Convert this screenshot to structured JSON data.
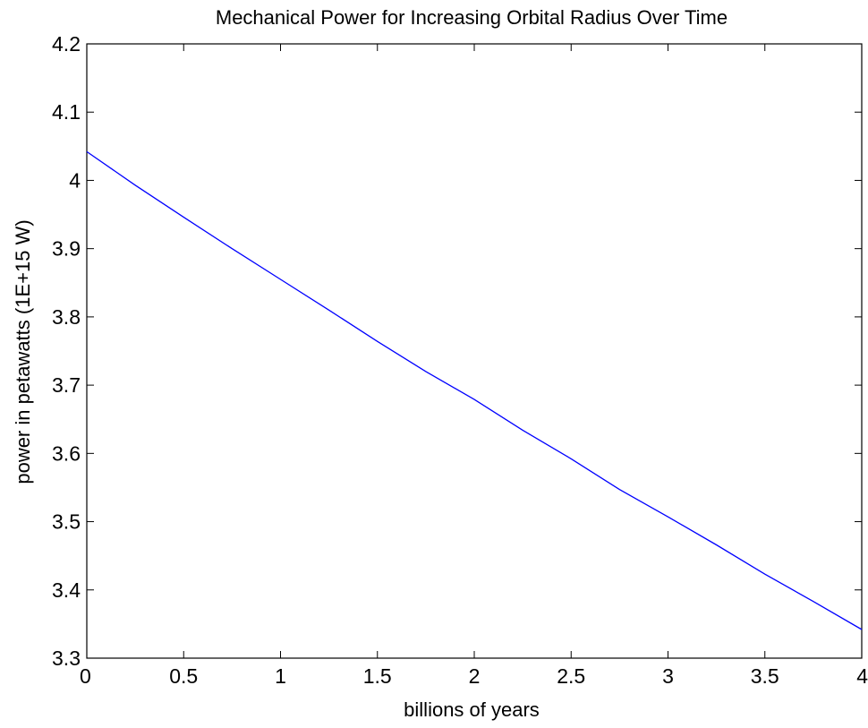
{
  "chart_data": {
    "type": "line",
    "title": "Mechanical Power for Increasing Orbital Radius Over Time",
    "xlabel": "billions of years",
    "ylabel": "power in petawatts (1E+15 W)",
    "xlim": [
      0,
      4
    ],
    "ylim": [
      3.3,
      4.2
    ],
    "x_ticks": [
      "0",
      "0.5",
      "1",
      "1.5",
      "2",
      "2.5",
      "3",
      "3.5",
      "4"
    ],
    "y_ticks": [
      "3.3",
      "3.4",
      "3.5",
      "3.6",
      "3.7",
      "3.8",
      "3.9",
      "4",
      "4.1",
      "4.2"
    ],
    "grid": false,
    "legend": "none",
    "series": [
      {
        "color": "#0000ff",
        "x": [
          0,
          0.25,
          0.5,
          0.75,
          1,
          1.25,
          1.5,
          1.75,
          2,
          2.25,
          2.5,
          2.75,
          3,
          3.25,
          3.5,
          3.75,
          4
        ],
        "y": [
          4.042,
          3.993,
          3.946,
          3.9,
          3.855,
          3.81,
          3.764,
          3.72,
          3.679,
          3.634,
          3.592,
          3.547,
          3.507,
          3.466,
          3.423,
          3.383,
          3.342
        ]
      }
    ]
  },
  "colors": {
    "axes": "#000000",
    "background": "#ffffff"
  }
}
